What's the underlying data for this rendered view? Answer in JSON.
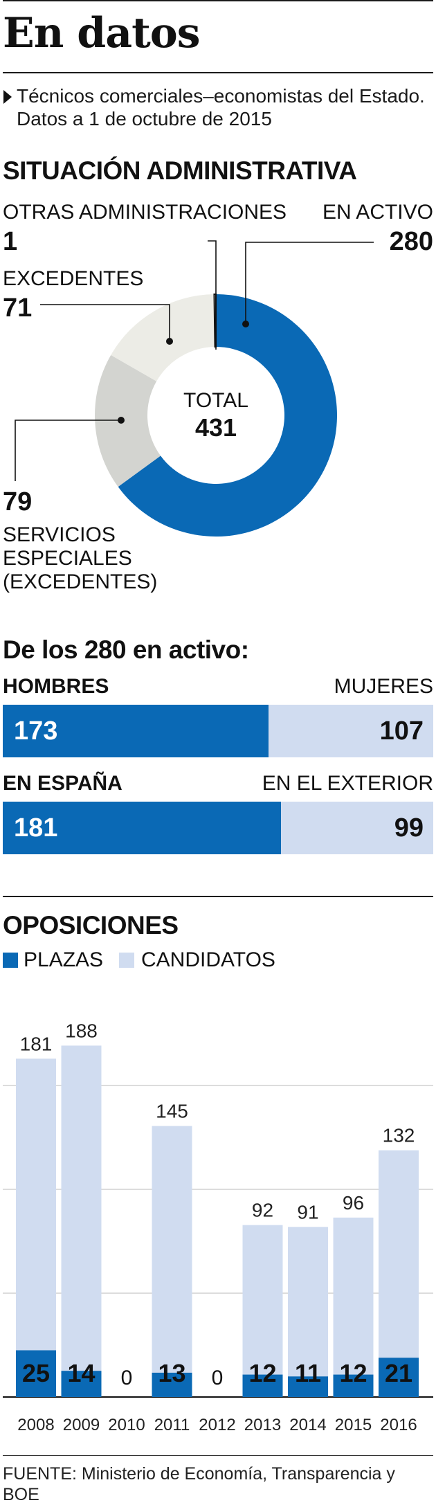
{
  "header": {
    "title": "En datos",
    "subtitle_line1": "Técnicos comerciales–economistas del Estado.",
    "subtitle_line2": "Datos a 1 de octubre de 2015"
  },
  "situacion": {
    "heading": "SITUACIÓN ADMINISTRATIVA",
    "total_label": "TOTAL",
    "total_value": "431",
    "otras_label": "OTRAS ADMINISTRACIONES",
    "otras_value": "1",
    "activo_label": "EN ACTIVO",
    "activo_value": "280",
    "excedentes_label": "EXCEDENTES",
    "excedentes_value": "71",
    "servicios_value": "79",
    "servicios_line1": "SERVICIOS",
    "servicios_line2": "ESPECIALES",
    "servicios_line3": "(EXCEDENTES)"
  },
  "activo": {
    "heading": "De los 280 en activo:",
    "hombres_label": "HOMBRES",
    "mujeres_label": "MUJERES",
    "hombres_value": "173",
    "mujeres_value": "107",
    "espana_label": "EN ESPAÑA",
    "exterior_label": "EN EL EXTERIOR",
    "espana_value": "181",
    "exterior_value": "99"
  },
  "oposiciones": {
    "heading": "OPOSICIONES",
    "legend_plazas": "PLAZAS",
    "legend_candidatos": "CANDIDATOS"
  },
  "source": "FUENTE: Ministerio de Economía, Transparencia y BOE",
  "colors": {
    "primary_blue": "#0a69b5",
    "light_blue": "#d0dcf0",
    "grey_dark": "#d3d4d0",
    "grey_light": "#ecece6"
  },
  "chart_data": [
    {
      "type": "pie",
      "title": "SITUACIÓN ADMINISTRATIVA",
      "categories": [
        "EN ACTIVO",
        "SERVICIOS ESPECIALES (EXCEDENTES)",
        "EXCEDENTES",
        "OTRAS ADMINISTRACIONES"
      ],
      "values": [
        280,
        79,
        71,
        1
      ],
      "total": 431
    },
    {
      "type": "bar",
      "title": "De los 280 en activo:",
      "categories": [
        "HOMBRES / MUJERES",
        "EN ESPAÑA / EN EL EXTERIOR"
      ],
      "series": [
        {
          "name": "HOMBRES / EN ESPAÑA",
          "values": [
            173,
            181
          ]
        },
        {
          "name": "MUJERES / EN EL EXTERIOR",
          "values": [
            107,
            99
          ]
        }
      ]
    },
    {
      "type": "bar",
      "title": "OPOSICIONES",
      "categories": [
        "2008",
        "2009",
        "2010",
        "2011",
        "2012",
        "2013",
        "2014",
        "2015",
        "2016"
      ],
      "series": [
        {
          "name": "PLAZAS",
          "values": [
            25,
            14,
            0,
            13,
            0,
            12,
            11,
            12,
            21
          ]
        },
        {
          "name": "CANDIDATOS",
          "values": [
            181,
            188,
            0,
            145,
            0,
            92,
            91,
            96,
            132
          ]
        }
      ],
      "ylim": [
        0,
        200
      ],
      "grid": true,
      "legend": "top-left"
    }
  ]
}
